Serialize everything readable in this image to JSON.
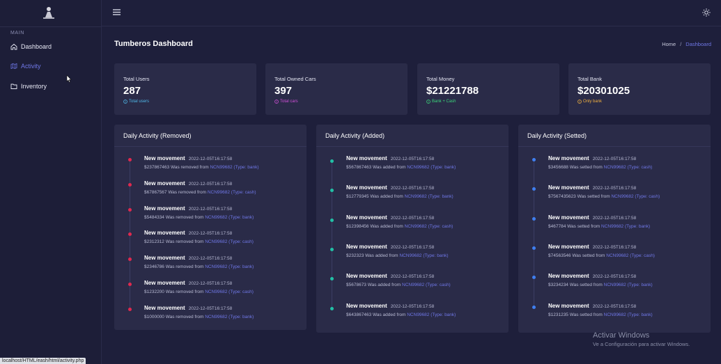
{
  "sidebar": {
    "section": "MAIN",
    "items": [
      {
        "label": "Dashboard",
        "icon": "home-icon"
      },
      {
        "label": "Activity",
        "icon": "map-icon"
      },
      {
        "label": "Inventory",
        "icon": "folder-icon"
      }
    ]
  },
  "header": {
    "title": "Tumberos Dashboard",
    "breadcrumb": {
      "home": "Home",
      "separator": "/",
      "current": "Dashboard"
    }
  },
  "cards": [
    {
      "title": "Total Users",
      "value": "287",
      "sub": "Total users",
      "color": "#4fb8e8"
    },
    {
      "title": "Total Owned Cars",
      "value": "397",
      "sub": "Total cars",
      "color": "#d04fd8"
    },
    {
      "title": "Total Money",
      "value": "$21221788",
      "sub": "Bank + Cash",
      "color": "#3bd47a"
    },
    {
      "title": "Total Bank",
      "value": "$20301025",
      "sub": "Only bank",
      "color": "#f0b040"
    }
  ],
  "panels": [
    {
      "title": "Daily Activity (Removed)",
      "dot_color": "#e0294e",
      "items": [
        {
          "title": "New movement",
          "time": "2022-12-05T16:17:58",
          "amount": "$2378674​63",
          "action": "Was removed from",
          "target": "NCN99682 (Type: bank)"
        },
        {
          "title": "New movement",
          "time": "2022-12-05T16:17:58",
          "amount": "$67867567",
          "action": "Was removed from",
          "target": "NCN99682 (Type: cash)"
        },
        {
          "title": "New movement",
          "time": "2022-12-05T16:17:58",
          "amount": "$5484334",
          "action": "Was removed from",
          "target": "NCN99682 (Type: bank)"
        },
        {
          "title": "New movement",
          "time": "2022-12-05T16:17:58",
          "amount": "$2312312",
          "action": "Was removed from",
          "target": "NCN99682 (Type: cash)"
        },
        {
          "title": "New movement",
          "time": "2022-12-05T16:17:58",
          "amount": "$2346786",
          "action": "Was removed from",
          "target": "NCN99682 (Type: bank)"
        },
        {
          "title": "New movement",
          "time": "2022-12-05T16:17:58",
          "amount": "$1232200",
          "action": "Was removed from",
          "target": "NCN99682 (Type: cash)"
        },
        {
          "title": "New movement",
          "time": "2022-12-05T16:17:58",
          "amount": "$1000000",
          "action": "Was removed from",
          "target": "NCN99682 (Type: bank)"
        }
      ]
    },
    {
      "title": "Daily Activity (Added)",
      "dot_color": "#22c0a6",
      "items": [
        {
          "title": "New movement",
          "time": "2022-12-05T16:17:58",
          "amount": "$567867463",
          "action": "Was added from",
          "target": "NCN99682 (Type: bank)"
        },
        {
          "title": "New movement",
          "time": "2022-12-05T16:17:58",
          "amount": "$12779345",
          "action": "Was added from",
          "target": "NCN99682 (Type: bank)"
        },
        {
          "title": "New movement",
          "time": "2022-12-05T16:17:58",
          "amount": "$12398456",
          "action": "Was added from",
          "target": "NCN99682 (Type: cash)"
        },
        {
          "title": "New movement",
          "time": "2022-12-05T16:17:58",
          "amount": "$232323",
          "action": "Was added from",
          "target": "NCN99682 (Type: bank)"
        },
        {
          "title": "New movement",
          "time": "2022-12-05T16:17:58",
          "amount": "$5678673",
          "action": "Was added from",
          "target": "NCN99682 (Type: cash)"
        },
        {
          "title": "New movement",
          "time": "2022-12-05T16:17:58",
          "amount": "$643867463",
          "action": "Was added from",
          "target": "NCN99682 (Type: bank)"
        }
      ]
    },
    {
      "title": "Daily Activity (Setted)",
      "dot_color": "#3f7ff0",
      "items": [
        {
          "title": "New movement",
          "time": "2022-12-05T16:17:58",
          "amount": "$3456688",
          "action": "Was setted from",
          "target": "NCN99682 (Type: cash)"
        },
        {
          "title": "New movement",
          "time": "2022-12-05T16:17:58",
          "amount": "$7567435623",
          "action": "Was setted from",
          "target": "NCN99682 (Type: cash)"
        },
        {
          "title": "New movement",
          "time": "2022-12-05T16:17:58",
          "amount": "$467784",
          "action": "Was setted from",
          "target": "NCN99682 (Type: bank)"
        },
        {
          "title": "New movement",
          "time": "2022-12-05T16:17:58",
          "amount": "$74563546",
          "action": "Was setted from",
          "target": "NCN99682 (Type: cash)"
        },
        {
          "title": "New movement",
          "time": "2022-12-05T16:17:58",
          "amount": "$3234234",
          "action": "Was setted from",
          "target": "NCN99682 (Type: bank)"
        },
        {
          "title": "New movement",
          "time": "2022-12-05T16:17:58",
          "amount": "$1231235",
          "action": "Was setted from",
          "target": "NCN99682 (Type: bank)"
        }
      ]
    }
  ],
  "status_bar": {
    "url": "localhost/HTML/eash/html/activity.php"
  },
  "watermark": {
    "line1": "Activar Windows",
    "line2": "Ve a Configuración para activar Windows."
  }
}
